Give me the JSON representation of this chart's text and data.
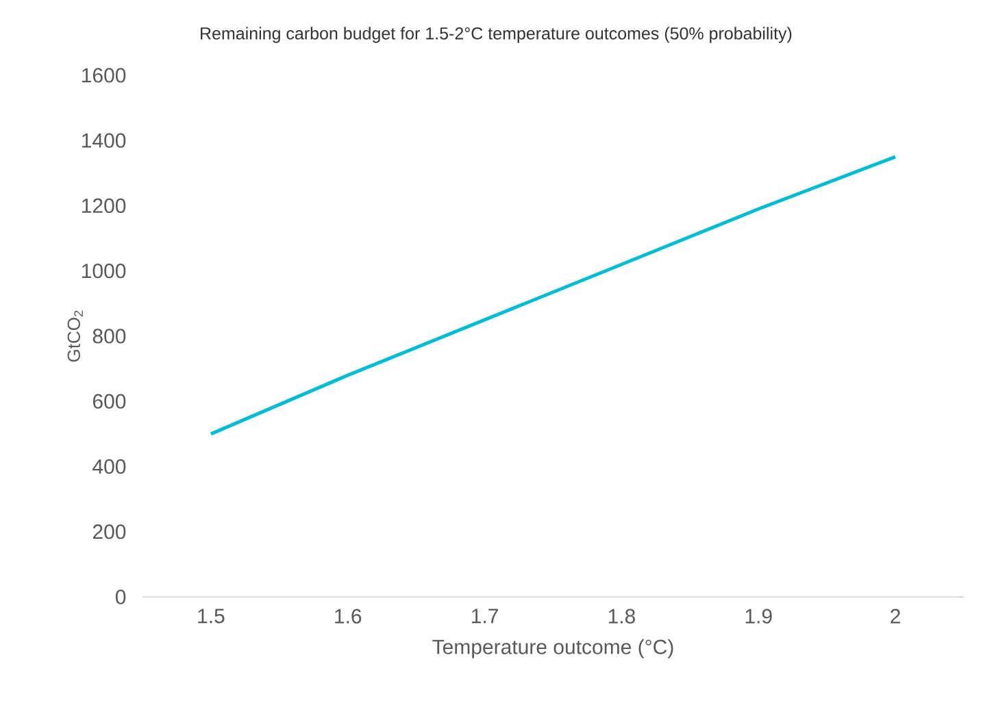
{
  "chart_data": {
    "type": "line",
    "title": "Remaining carbon budget for 1.5-2°C temperature outcomes (50% probability)",
    "xlabel": "Temperature outcome (°C)",
    "ylabel": "GtCO$_{2}$",
    "categories": [
      "1.5",
      "1.6",
      "1.7",
      "1.8",
      "1.9",
      "2"
    ],
    "values": [
      500,
      680,
      850,
      1020,
      1190,
      1350
    ],
    "color": "#00bcd0",
    "ylim": [
      0,
      1600
    ],
    "yticks": [
      0,
      200,
      400,
      600,
      800,
      1000,
      1200,
      1400,
      1600
    ]
  }
}
